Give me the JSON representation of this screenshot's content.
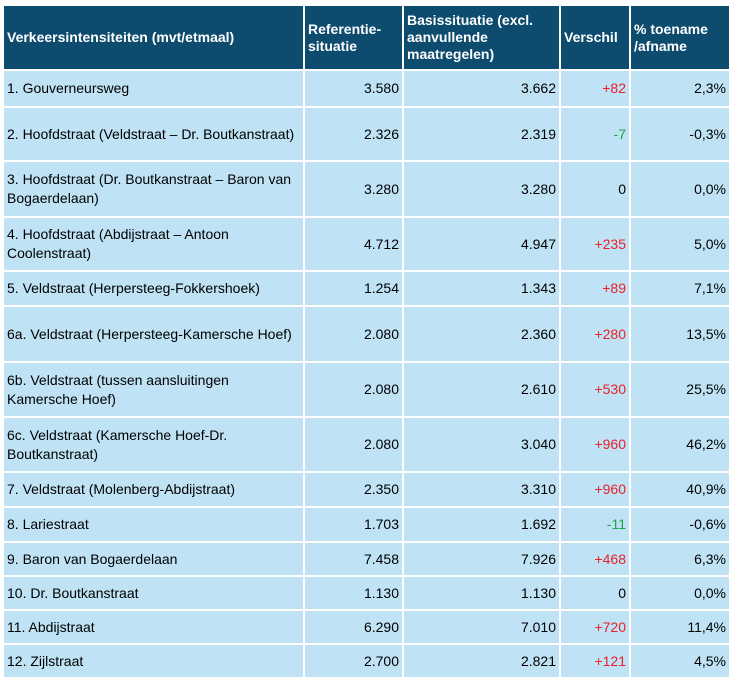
{
  "table": {
    "headers": [
      "Verkeersintensiteiten (mvt/etmaal)",
      "Referentie-situatie",
      "Basissituatie (excl. aanvullende maatregelen)",
      "Verschil",
      "% toename /afname"
    ],
    "rows": [
      {
        "name": "1. Gouverneursweg",
        "referentie": "3.580",
        "basis": "3.662",
        "verschil": "+82",
        "percentage": "2,3%",
        "sign": "pos",
        "height": 37
      },
      {
        "name": "2. Hoofdstraat (Veldstraat – Dr. Boutkanstraat)",
        "referentie": "2.326",
        "basis": "2.319",
        "verschil": "-7",
        "percentage": "-0,3%",
        "sign": "neg",
        "height": 54
      },
      {
        "name": "3. Hoofdstraat (Dr. Boutkanstraat – Baron van Bogaerdelaan)",
        "referentie": "3.280",
        "basis": "3.280",
        "verschil": "0",
        "percentage": "0,0%",
        "sign": "zero",
        "height": 56
      },
      {
        "name": "4. Hoofdstraat (Abdijstraat – Antoon Coolenstraat)",
        "referentie": "4.712",
        "basis": "4.947",
        "verschil": "+235",
        "percentage": "5,0%",
        "sign": "pos",
        "height": 54
      },
      {
        "name": "5. Veldstraat (Herpersteeg-Fokkershoek)",
        "referentie": "1.254",
        "basis": "1.343",
        "verschil": "+89",
        "percentage": "7,1%",
        "sign": "pos",
        "height": 35
      },
      {
        "name": "6a. Veldstraat (Herpersteeg-Kamersche Hoef)",
        "referentie": "2.080",
        "basis": "2.360",
        "verschil": "+280",
        "percentage": "13,5%",
        "sign": "pos",
        "height": 56
      },
      {
        "name": "6b. Veldstraat (tussen aansluitingen Kamersche Hoef)",
        "referentie": "2.080",
        "basis": "2.610",
        "verschil": "+530",
        "percentage": "25,5%",
        "sign": "pos",
        "height": 55
      },
      {
        "name": "6c. Veldstraat (Kamersche Hoef-Dr. Boutkanstraat)",
        "referentie": "2.080",
        "basis": "3.040",
        "verschil": "+960",
        "percentage": "46,2%",
        "sign": "pos",
        "height": 55
      },
      {
        "name": "7. Veldstraat (Molenberg-Abdijstraat)",
        "referentie": "2.350",
        "basis": "3.310",
        "verschil": "+960",
        "percentage": "40,9%",
        "sign": "pos",
        "height": 35
      },
      {
        "name": "8. Lariestraat",
        "referentie": "1.703",
        "basis": "1.692",
        "verschil": "-11",
        "percentage": "-0,6%",
        "sign": "neg",
        "height": 35
      },
      {
        "name": "9. Baron van Bogaerdelaan",
        "referentie": "7.458",
        "basis": "7.926",
        "verschil": "+468",
        "percentage": "6,3%",
        "sign": "pos",
        "height": 34
      },
      {
        "name": "10. Dr. Boutkanstraat",
        "referentie": "1.130",
        "basis": "1.130",
        "verschil": "0",
        "percentage": "0,0%",
        "sign": "zero",
        "height": 34
      },
      {
        "name": "11. Abdijstraat",
        "referentie": "6.290",
        "basis": "7.010",
        "verschil": "+720",
        "percentage": "11,4%",
        "sign": "pos",
        "height": 34
      },
      {
        "name": "12. Zijlstraat",
        "referentie": "2.700",
        "basis": "2.821",
        "verschil": "+121",
        "percentage": "4,5%",
        "sign": "pos",
        "height": 34
      }
    ]
  }
}
